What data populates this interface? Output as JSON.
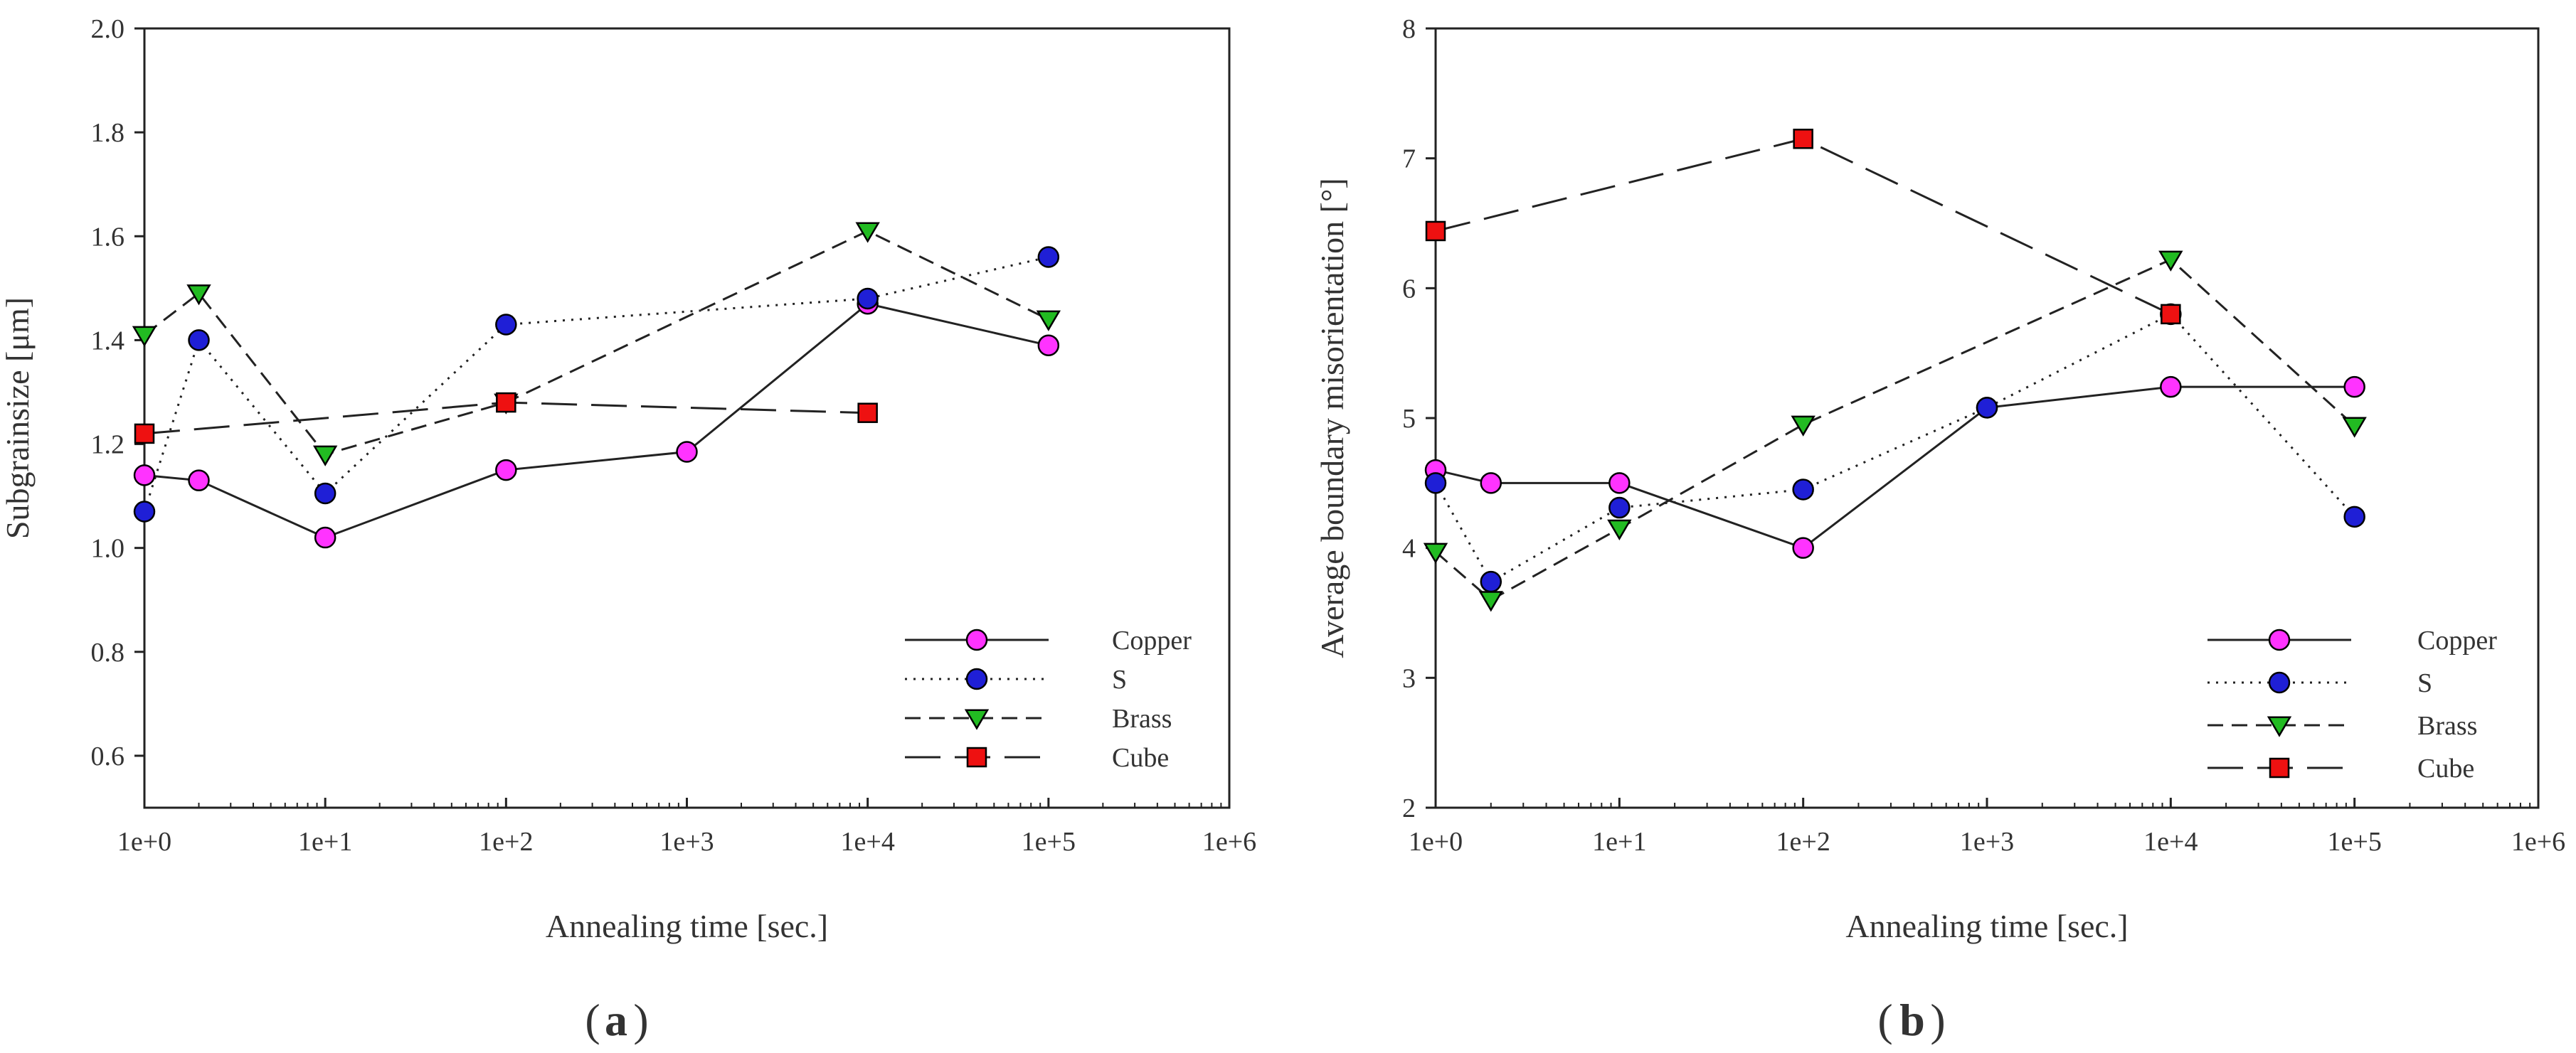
{
  "figure": {
    "panel_labels": [
      {
        "open": "(",
        "letter": "a",
        "close": ")"
      },
      {
        "open": "(",
        "letter": "b",
        "close": ")"
      }
    ]
  },
  "chart_data": [
    {
      "type": "line",
      "title": "",
      "xlabel": "Annealing time [sec.]",
      "ylabel": "Subgrainsize [μm]",
      "xscale": "log",
      "xlim_log10": [
        0,
        6
      ],
      "ylim": [
        0.5,
        2.0
      ],
      "xticks": [
        0,
        1,
        2,
        3,
        4,
        5,
        6
      ],
      "xtick_labels": [
        "1e+0",
        "1e+1",
        "1e+2",
        "1e+3",
        "1e+4",
        "1e+5",
        "1e+6"
      ],
      "yticks": [
        0.6,
        0.8,
        1.0,
        1.2,
        1.4,
        1.6,
        1.8,
        2.0
      ],
      "ytick_labels": [
        "0.6",
        "0.8",
        "1.0",
        "1.2",
        "1.4",
        "1.6",
        "1.8",
        "2.0"
      ],
      "legend_position": "bottom-right",
      "series": [
        {
          "name": "Copper",
          "color": "#ff33ff",
          "marker": "circle",
          "linestyle": "solid",
          "x": [
            1,
            2,
            10,
            100,
            1000,
            10000,
            100000
          ],
          "values": [
            1.14,
            1.13,
            1.02,
            1.15,
            1.185,
            1.47,
            1.39
          ]
        },
        {
          "name": "S",
          "color": "#1f1fd6",
          "marker": "circle",
          "linestyle": "dotted",
          "x": [
            1,
            2,
            10,
            100,
            10000,
            100000
          ],
          "values": [
            1.07,
            1.4,
            1.105,
            1.43,
            1.48,
            1.56
          ]
        },
        {
          "name": "Brass",
          "color": "#22bb22",
          "marker": "triangle-down",
          "linestyle": "dashed",
          "x": [
            1,
            2,
            10,
            100,
            10000,
            100000
          ],
          "values": [
            1.41,
            1.49,
            1.18,
            1.28,
            1.61,
            1.44
          ]
        },
        {
          "name": "Cube",
          "color": "#ee1111",
          "marker": "square",
          "linestyle": "longdash",
          "x": [
            1,
            100,
            10000
          ],
          "values": [
            1.22,
            1.28,
            1.26
          ]
        }
      ]
    },
    {
      "type": "line",
      "title": "",
      "xlabel": "Annealing time [sec.]",
      "ylabel": "Average boundary misorientation [°]",
      "xscale": "log",
      "xlim_log10": [
        0,
        6
      ],
      "ylim": [
        2,
        8
      ],
      "xticks": [
        0,
        1,
        2,
        3,
        4,
        5,
        6
      ],
      "xtick_labels": [
        "1e+0",
        "1e+1",
        "1e+2",
        "1e+3",
        "1e+4",
        "1e+5",
        "1e+6"
      ],
      "yticks": [
        2,
        3,
        4,
        5,
        6,
        7,
        8
      ],
      "ytick_labels": [
        "2",
        "3",
        "4",
        "5",
        "6",
        "7",
        "8"
      ],
      "legend_position": "bottom-right",
      "series": [
        {
          "name": "Copper",
          "color": "#ff33ff",
          "marker": "circle",
          "linestyle": "solid",
          "x": [
            1,
            2,
            10,
            100,
            1000,
            10000,
            100000
          ],
          "values": [
            4.6,
            4.5,
            4.5,
            4.0,
            5.08,
            5.24,
            5.24
          ]
        },
        {
          "name": "S",
          "color": "#1f1fd6",
          "marker": "circle",
          "linestyle": "dotted",
          "x": [
            1,
            2,
            10,
            100,
            1000,
            10000,
            100000
          ],
          "values": [
            4.5,
            3.74,
            4.31,
            4.45,
            5.08,
            5.8,
            4.24
          ]
        },
        {
          "name": "Brass",
          "color": "#22bb22",
          "marker": "triangle-down",
          "linestyle": "dashed",
          "x": [
            1,
            2,
            10,
            100,
            10000,
            100000
          ],
          "values": [
            3.97,
            3.6,
            4.15,
            4.95,
            6.22,
            4.94
          ]
        },
        {
          "name": "Cube",
          "color": "#ee1111",
          "marker": "square",
          "linestyle": "longdash",
          "x": [
            1,
            100,
            10000
          ],
          "values": [
            6.44,
            7.15,
            5.8
          ]
        }
      ]
    }
  ]
}
